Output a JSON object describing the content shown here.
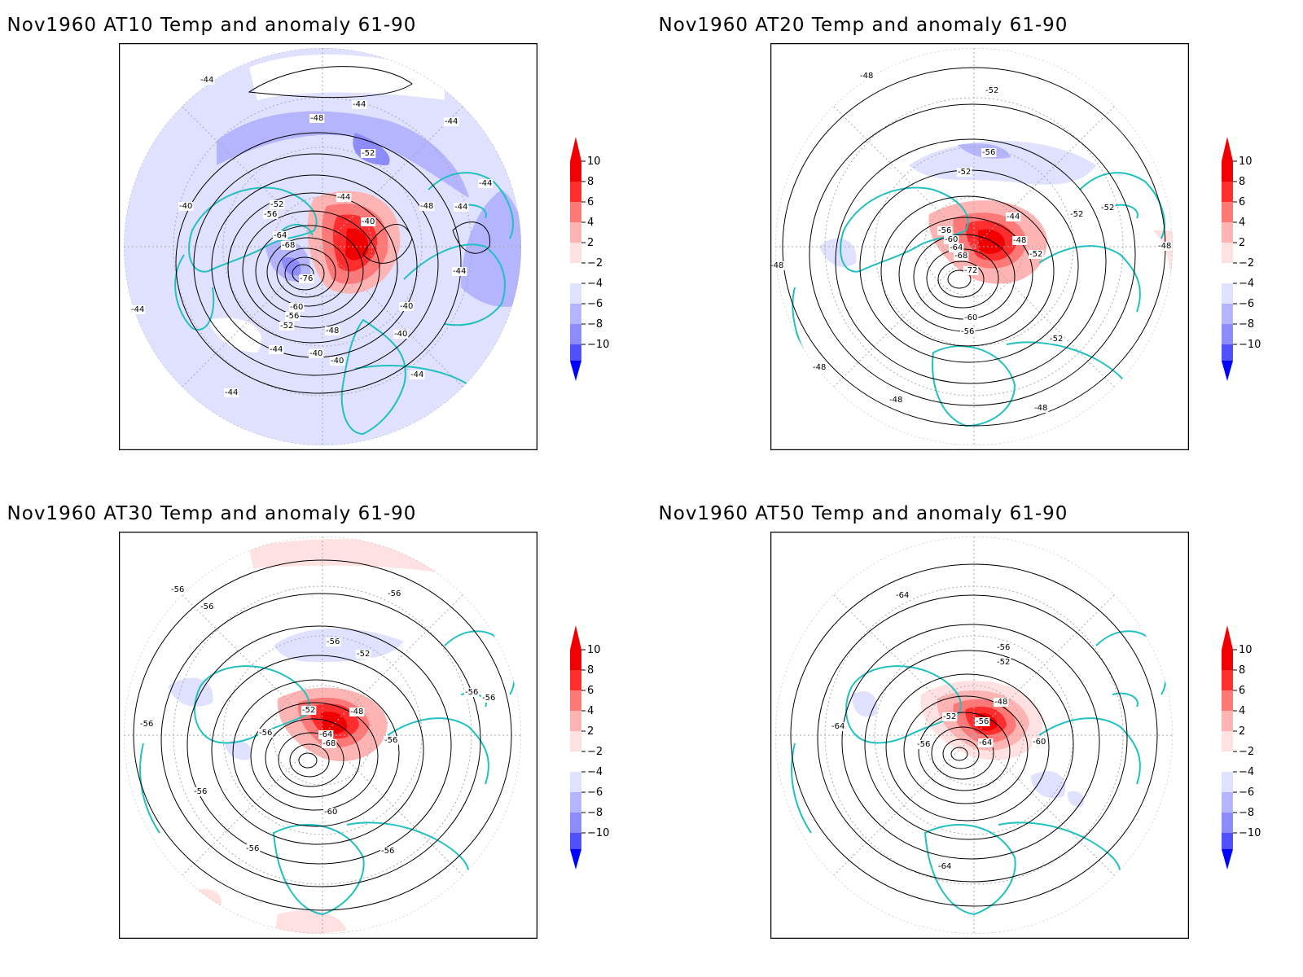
{
  "colors": {
    "warm": [
      "#ffe1e1",
      "#ffb4b4",
      "#ff7878",
      "#ff2d2d",
      "#f00000"
    ],
    "cool": [
      "#e0e0ff",
      "#b4b4ff",
      "#8c8cff",
      "#5050ff",
      "#0000ff"
    ],
    "coastline": "#22c0c0",
    "contour": "#000000",
    "graticule": "#aaaaaa",
    "frame": "#000000"
  },
  "colorbar": {
    "ticks": [
      "10",
      "8",
      "6",
      "4",
      "2",
      "−2",
      "−4",
      "−6",
      "−8",
      "−10"
    ]
  },
  "panels": [
    {
      "title": "Nov1960 AT10 Temp and anomaly 61-90",
      "contour_labels": [
        "-44",
        "-44",
        "-48",
        "-44",
        "-52",
        "-44",
        "-48",
        "-44",
        "-40",
        "-52",
        "-56",
        "-44",
        "-40",
        "-64",
        "-68",
        "-76",
        "-44",
        "-44",
        "-60",
        "-56",
        "-52",
        "-48",
        "-40",
        "-40",
        "-44",
        "-40",
        "-40",
        "-44",
        "-44"
      ]
    },
    {
      "title": "Nov1960 AT20 Temp and anomaly 61-90",
      "contour_labels": [
        "-48",
        "-52",
        "-56",
        "-52",
        "-52",
        "-52",
        "-44",
        "-48",
        "-52",
        "-56",
        "-60",
        "-64",
        "-68",
        "-72",
        "-48",
        "-48",
        "-60",
        "-56",
        "-52",
        "-48",
        "-48",
        "-48"
      ]
    },
    {
      "title": "Nov1960 AT30 Temp and anomaly 61-90",
      "contour_labels": [
        "-56",
        "-56",
        "-56",
        "-56",
        "-52",
        "-56",
        "-52",
        "-48",
        "-56",
        "-64",
        "-68",
        "-56",
        "-56",
        "-56",
        "-56",
        "-60",
        "-56",
        "-56"
      ]
    },
    {
      "title": "Nov1960 AT50 Temp and anomaly 61-90",
      "contour_labels": [
        "-64",
        "-56",
        "-52",
        "-48",
        "-52",
        "-56",
        "-64",
        "-56",
        "-64",
        "-60",
        "-64"
      ]
    }
  ]
}
